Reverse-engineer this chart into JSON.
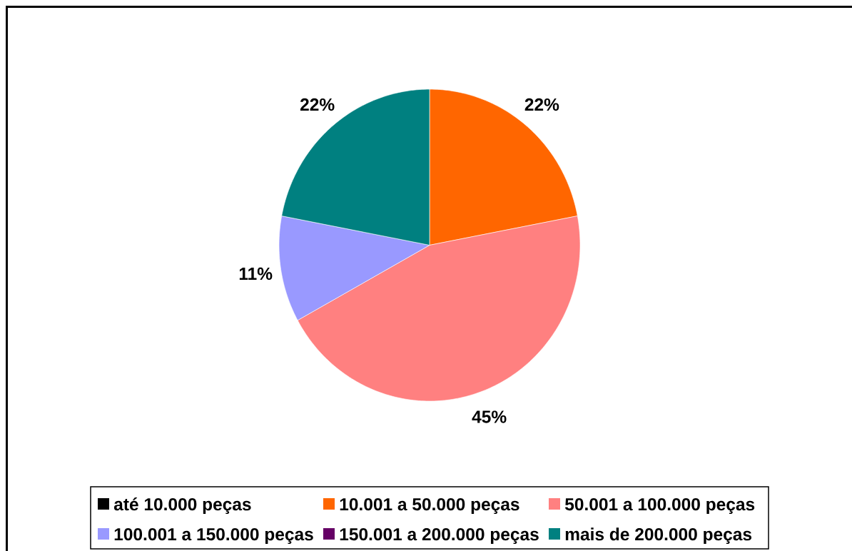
{
  "chart_data": {
    "type": "pie",
    "categories": [
      "até 10.000 peças",
      "10.001 a 50.000 peças",
      "50.001 a 100.000 peças",
      "100.001 a 150.000 peças",
      "150.001 a 200.000 peças",
      "mais de 200.000 peças"
    ],
    "values": [
      0,
      22,
      45,
      11,
      0,
      22
    ],
    "colors": [
      "#000000",
      "#ff6600",
      "#ff8080",
      "#9999ff",
      "#660066",
      "#008080"
    ],
    "value_labels": [
      null,
      "22%",
      "45%",
      "11%",
      null,
      "22%"
    ],
    "legend": "bottom"
  }
}
